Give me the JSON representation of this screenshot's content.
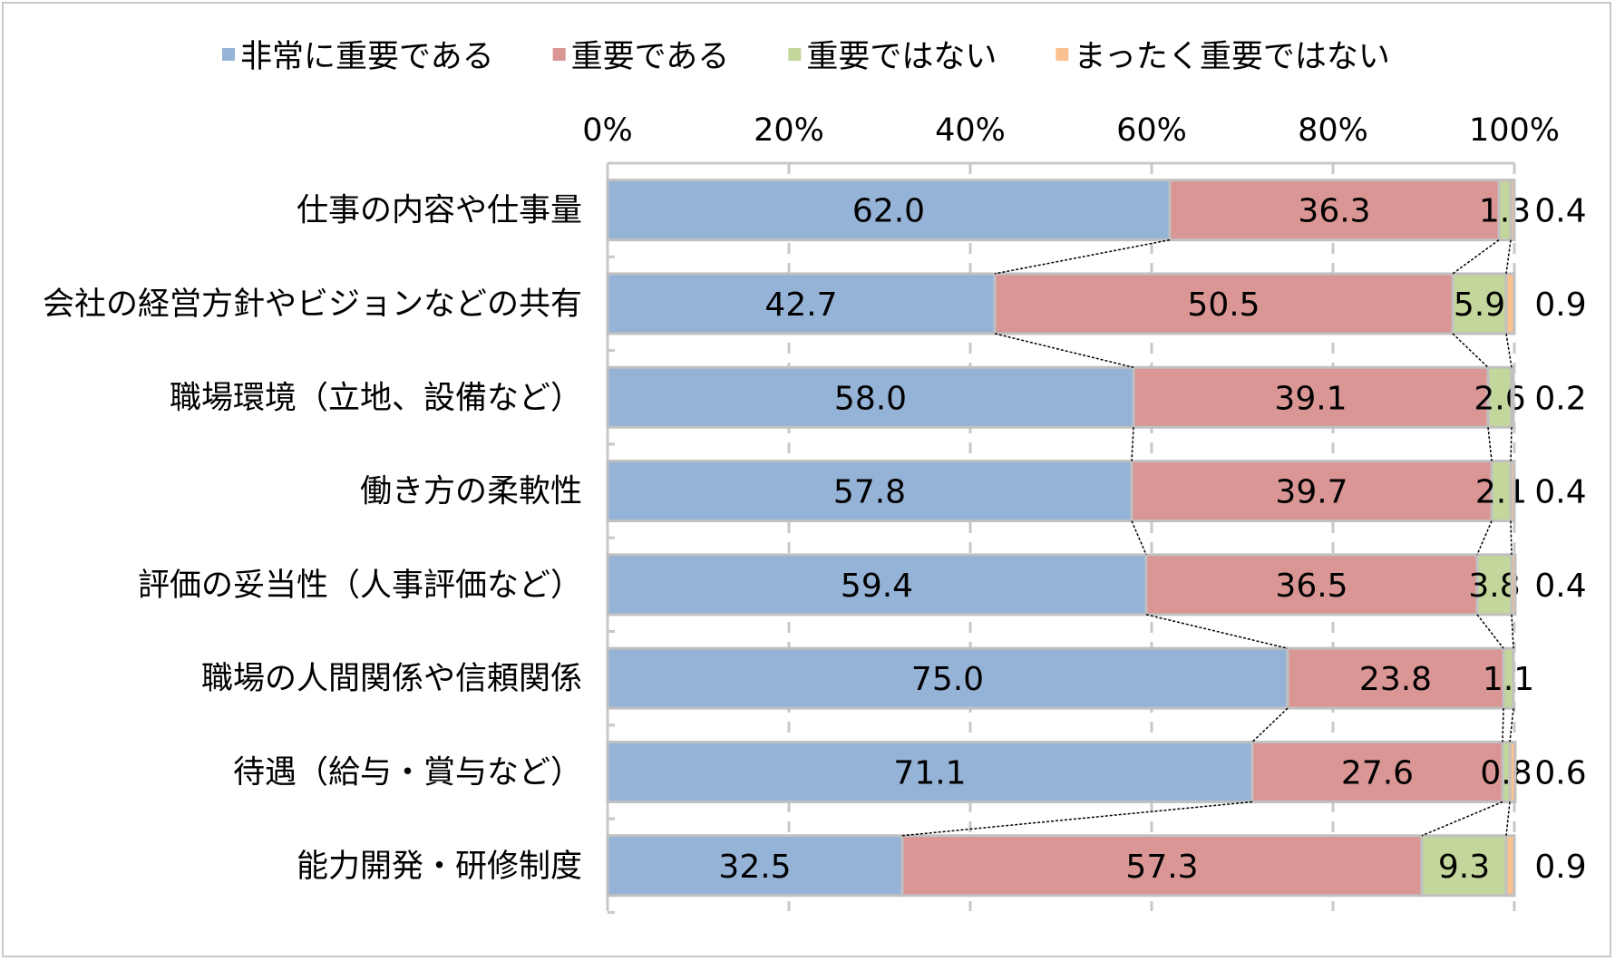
{
  "chart_data": {
    "type": "bar",
    "orientation": "horizontal",
    "stacked": "percent",
    "legend_position": "top",
    "xlim": [
      0,
      100
    ],
    "x_ticks": [
      "0%",
      "20%",
      "40%",
      "60%",
      "80%",
      "100%"
    ],
    "grid": "vertical dashed",
    "series_lines": true,
    "categories": [
      "仕事の内容や仕事量",
      "会社の経営方針やビジョンなどの共有",
      "職場環境（立地、設備など）",
      "働き方の柔軟性",
      "評価の妥当性（人事評価など）",
      "職場の人間関係や信頼関係",
      "待遇（給与・賞与など）",
      "能力開発・研修制度"
    ],
    "series": [
      {
        "name": "非常に重要である",
        "color": "#95b3d7",
        "values": [
          62.0,
          42.7,
          58.0,
          57.8,
          59.4,
          75.0,
          71.1,
          32.5
        ]
      },
      {
        "name": "重要である",
        "color": "#d99694",
        "values": [
          36.3,
          50.5,
          39.1,
          39.7,
          36.5,
          23.8,
          27.6,
          57.3
        ]
      },
      {
        "name": "重要ではない",
        "color": "#c3d69b",
        "values": [
          1.3,
          5.9,
          2.6,
          2.1,
          3.8,
          1.1,
          0.8,
          9.3
        ]
      },
      {
        "name": "まったく重要ではない",
        "color": "#fac090",
        "values": [
          0.4,
          0.9,
          0.2,
          0.4,
          0.4,
          null,
          0.6,
          0.9
        ]
      }
    ]
  }
}
